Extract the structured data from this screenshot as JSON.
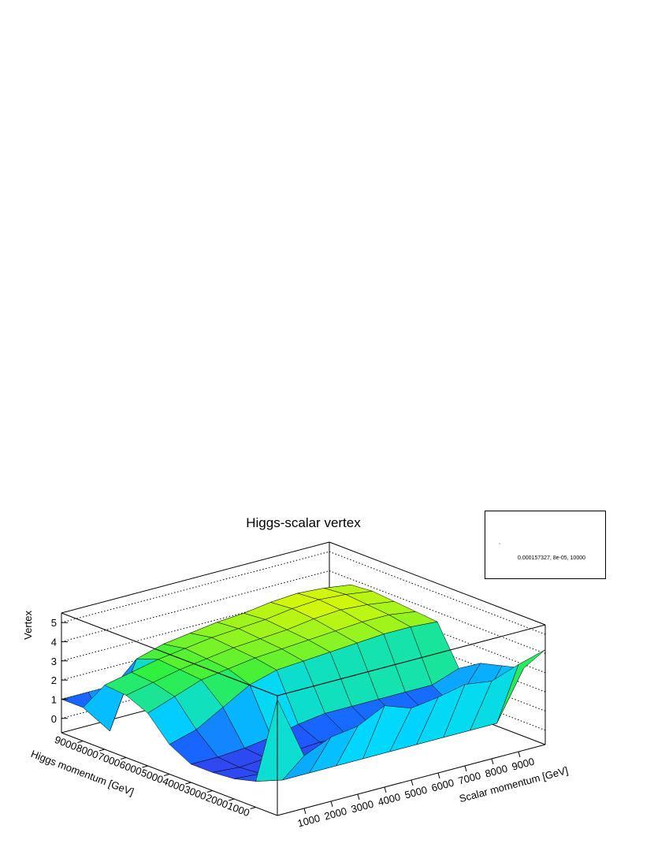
{
  "chart_data": {
    "type": "surface",
    "title": "Higgs-scalar vertex",
    "stats_text": "0.000157327, 8e-05, 10000",
    "xlabel": "Scalar momentum [GeV]",
    "ylabel": "Higgs momentum [GeV]",
    "zlabel": "Vertex",
    "x": [
      0,
      1000,
      2000,
      3000,
      4000,
      5000,
      6000,
      7000,
      8000,
      9000,
      10000
    ],
    "y": [
      0,
      1000,
      2000,
      3000,
      4000,
      5000,
      6000,
      7000,
      8000,
      9000,
      10000
    ],
    "z": [
      [
        5.3,
        2.0,
        2.6,
        2.8,
        3.5,
        3.0,
        3.2,
        3.5,
        3.3,
        3.8,
        4.2
      ],
      [
        0.6,
        0.3,
        0.3,
        0.3,
        0.3,
        0.3,
        0.3,
        0.3,
        0.3,
        0.3,
        2.8
      ],
      [
        0.3,
        0.2,
        0.2,
        0.2,
        0.3,
        0.3,
        0.3,
        0.3,
        0.3,
        0.3,
        2.5
      ],
      [
        0.2,
        0.1,
        0.2,
        0.2,
        0.3,
        0.3,
        0.3,
        0.3,
        0.3,
        0.3,
        2.2
      ],
      [
        0.2,
        0.2,
        0.3,
        0.5,
        0.8,
        1.0,
        1.0,
        1.0,
        1.0,
        1.0,
        1.5
      ],
      [
        0.8,
        1.2,
        2.0,
        2.8,
        3.2,
        3.3,
        3.4,
        3.5,
        3.6,
        3.6,
        3.5
      ],
      [
        2.0,
        2.5,
        3.0,
        3.2,
        3.4,
        3.5,
        3.6,
        3.7,
        3.8,
        3.8,
        3.6
      ],
      [
        2.5,
        2.8,
        3.1,
        3.3,
        3.5,
        3.6,
        3.7,
        3.9,
        4.0,
        3.9,
        3.7
      ],
      [
        2.6,
        2.9,
        3.2,
        3.4,
        3.6,
        3.7,
        3.8,
        4.0,
        4.1,
        4.0,
        3.8
      ],
      [
        1.0,
        -0.6,
        2.8,
        3.2,
        3.4,
        3.6,
        3.7,
        3.9,
        4.0,
        3.9,
        3.7
      ],
      [
        1.0,
        1.0,
        1.0,
        1.0,
        1.0,
        1.0,
        1.0,
        1.0,
        1.0,
        1.0,
        1.0
      ]
    ],
    "xlim": [
      0,
      10000
    ],
    "ylim": [
      0,
      10000
    ],
    "zlim": [
      -0.75,
      5.5
    ],
    "xticks": [
      1000,
      2000,
      3000,
      4000,
      5000,
      6000,
      7000,
      8000,
      9000
    ],
    "yticks": [
      1000,
      2000,
      3000,
      4000,
      5000,
      6000,
      7000,
      8000,
      9000
    ],
    "zticks": [
      0,
      1,
      2,
      3,
      4,
      5
    ],
    "grid": true,
    "palette": [
      "#6a10c8",
      "#1a5cff",
      "#00d8ff",
      "#30f040",
      "#f8f800",
      "#ff2010"
    ]
  }
}
